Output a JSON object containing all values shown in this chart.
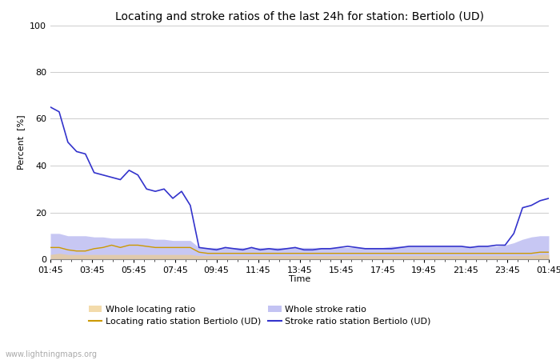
{
  "title": "Locating and stroke ratios of the last 24h for station: Bertiolo (UD)",
  "ylabel": "Percent  [%]",
  "xlabel": "Time",
  "xlabels": [
    "01:45",
    "03:45",
    "05:45",
    "07:45",
    "09:45",
    "11:45",
    "13:45",
    "15:45",
    "17:45",
    "19:45",
    "21:45",
    "23:45",
    "01:45"
  ],
  "ylim": [
    0,
    100
  ],
  "yticks": [
    0,
    20,
    40,
    60,
    80,
    100
  ],
  "watermark": "www.lightningmaps.org",
  "stroke_ratio_station": [
    65,
    63,
    50,
    46,
    45,
    37,
    36,
    35,
    34,
    38,
    36,
    30,
    29,
    30,
    26,
    29,
    23,
    5,
    4.5,
    4,
    5,
    4.5,
    4,
    5,
    4,
    4.5,
    4,
    4.5,
    5,
    4,
    4,
    4.5,
    4.5,
    5,
    5.5,
    5,
    4.5,
    4.5,
    4.5,
    4.5,
    5,
    5.5,
    5.5,
    5.5,
    5.5,
    5.5,
    5.5,
    5.5,
    5,
    5.5,
    5.5,
    6,
    6,
    11,
    22,
    23,
    25,
    26
  ],
  "locating_ratio_station": [
    5,
    5,
    4,
    3.5,
    3.5,
    4.5,
    5,
    6,
    5,
    6,
    6,
    5.5,
    5,
    5,
    5,
    5,
    5,
    3,
    2.5,
    2.5,
    2.5,
    2.5,
    2.5,
    2.5,
    2.5,
    2.5,
    2.5,
    2.5,
    2.5,
    2.5,
    2.5,
    2.5,
    2.5,
    2.5,
    2.5,
    2.5,
    2.5,
    2.5,
    2.5,
    2.5,
    2.5,
    2.5,
    2.5,
    2.5,
    2.5,
    2.5,
    2.5,
    2.5,
    2.5,
    2.5,
    2.5,
    2.5,
    2.5,
    2.5,
    2.5,
    2.5,
    3,
    3
  ],
  "whole_stroke_ratio": [
    11,
    11,
    10,
    10,
    10,
    9.5,
    9.5,
    9,
    9,
    9,
    9,
    9,
    8.5,
    8.5,
    8,
    8,
    8,
    5,
    5,
    5,
    5,
    5,
    5,
    5,
    5,
    5,
    5,
    5,
    5,
    5,
    5,
    5,
    5,
    5,
    5,
    5,
    5,
    5,
    5,
    5.5,
    5.5,
    5.5,
    5.5,
    5.5,
    5.5,
    5.5,
    5.5,
    5.5,
    5.5,
    5.5,
    5.5,
    5.5,
    6,
    7,
    8.5,
    9.5,
    10,
    10
  ],
  "whole_locating_ratio": [
    2,
    2.5,
    2,
    2,
    2,
    2,
    2,
    2,
    2,
    2,
    2,
    2,
    2,
    2,
    2,
    2,
    2,
    1.5,
    1.5,
    1.5,
    1.5,
    1.5,
    1.5,
    1.5,
    1.5,
    1.5,
    1.5,
    1.5,
    1.5,
    1.5,
    1.5,
    1.5,
    1.5,
    1.5,
    1.5,
    1.5,
    1.5,
    1.5,
    1.5,
    1.5,
    1.5,
    1.5,
    1.5,
    1.5,
    1.5,
    1.5,
    1.5,
    1.5,
    1.5,
    1.5,
    1.5,
    1.5,
    1.5,
    1.5,
    1.5,
    1.5,
    2,
    2
  ],
  "color_stroke_station": "#3333cc",
  "color_locating_station": "#cc9900",
  "color_whole_stroke": "#aaaaee",
  "color_whole_locating": "#eecc88",
  "background_color": "#ffffff",
  "grid_color": "#cccccc",
  "title_fontsize": 10,
  "tick_fontsize": 8,
  "label_fontsize": 8
}
